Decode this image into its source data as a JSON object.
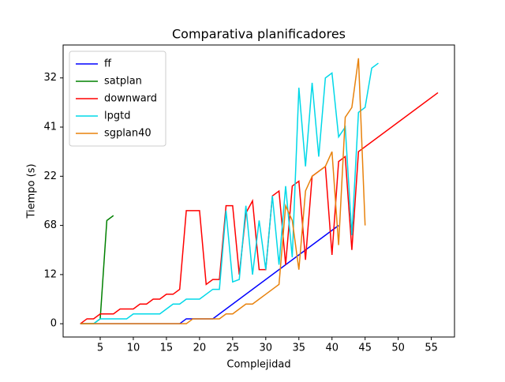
{
  "chart_data": {
    "type": "line",
    "title": "Comparativa planificadores",
    "x_label": "Complejidad",
    "y_label": "Tiempo (s)",
    "xlim": [
      -0.6,
      58.5
    ],
    "xticks": [
      5,
      10,
      15,
      20,
      25,
      30,
      35,
      40,
      45,
      50,
      55
    ],
    "ylim": [
      -0.27,
      5.67
    ],
    "yticks": [
      {
        "value": 0,
        "label": "0"
      },
      {
        "value": 1,
        "label": "12"
      },
      {
        "value": 2,
        "label": "68"
      },
      {
        "value": 3,
        "label": "22"
      },
      {
        "value": 4,
        "label": "41"
      },
      {
        "value": 5,
        "label": "32"
      }
    ],
    "legend": "upper left",
    "series": [
      {
        "name": "ff",
        "color": "#0000ff",
        "x": [
          2,
          17,
          18,
          22,
          41
        ],
        "values": [
          0,
          0,
          0.1,
          0.1,
          2.0
        ]
      },
      {
        "name": "satplan",
        "color": "#008000",
        "x": [
          2,
          3,
          4,
          5,
          6,
          7
        ],
        "values": [
          0,
          0,
          0,
          0.1,
          2.1,
          2.2
        ]
      },
      {
        "name": "downward",
        "color": "#ff0000",
        "x": [
          2,
          3,
          4,
          5,
          6,
          7,
          8,
          9,
          10,
          11,
          12,
          13,
          14,
          15,
          16,
          17,
          18,
          19,
          20,
          21,
          22,
          23,
          24,
          25,
          26,
          27,
          28,
          29,
          30,
          31,
          32,
          33,
          34,
          35,
          36,
          37,
          38,
          39,
          40,
          41,
          42,
          43,
          44,
          56
        ],
        "values": [
          0,
          0.1,
          0.1,
          0.2,
          0.2,
          0.2,
          0.3,
          0.3,
          0.3,
          0.4,
          0.4,
          0.5,
          0.5,
          0.6,
          0.6,
          0.7,
          2.3,
          2.3,
          2.3,
          0.8,
          0.9,
          0.9,
          2.4,
          2.4,
          1.0,
          2.25,
          2.5,
          1.1,
          1.1,
          2.6,
          2.7,
          1.2,
          2.8,
          2.9,
          1.3,
          3.0,
          3.1,
          3.2,
          1.4,
          3.3,
          3.4,
          1.5,
          3.5,
          4.7
        ]
      },
      {
        "name": "lpgtd",
        "color": "#00d8e8",
        "x": [
          4,
          5,
          9,
          10,
          14,
          15,
          16,
          17,
          18,
          19,
          20,
          21,
          22,
          23,
          24,
          25,
          26,
          27,
          28,
          29,
          30,
          31,
          32,
          33,
          34,
          35,
          36,
          37,
          38,
          39,
          40,
          41,
          42,
          43,
          44,
          45,
          46,
          47
        ],
        "values": [
          0,
          0.1,
          0.1,
          0.2,
          0.2,
          0.3,
          0.4,
          0.4,
          0.5,
          0.5,
          0.5,
          0.6,
          0.7,
          0.7,
          2.3,
          0.85,
          0.9,
          2.4,
          1.0,
          2.1,
          1.1,
          2.6,
          1.2,
          2.8,
          1.35,
          4.8,
          3.2,
          4.9,
          3.4,
          5.0,
          5.1,
          3.8,
          4.0,
          1.8,
          4.3,
          4.4,
          5.2,
          5.3
        ]
      },
      {
        "name": "sgplan40",
        "color": "#e8820c",
        "x": [
          2,
          18,
          19,
          23,
          24,
          25,
          26,
          27,
          28,
          29,
          30,
          31,
          32,
          33,
          34,
          35,
          36,
          37,
          38,
          39,
          40,
          41,
          42,
          43,
          44,
          45
        ],
        "values": [
          0,
          0,
          0.1,
          0.1,
          0.2,
          0.2,
          0.3,
          0.4,
          0.4,
          0.5,
          0.6,
          0.7,
          0.8,
          2.4,
          2.1,
          1.1,
          2.7,
          3.0,
          3.1,
          3.2,
          3.5,
          1.6,
          4.2,
          4.4,
          5.4,
          2.0
        ]
      }
    ]
  }
}
